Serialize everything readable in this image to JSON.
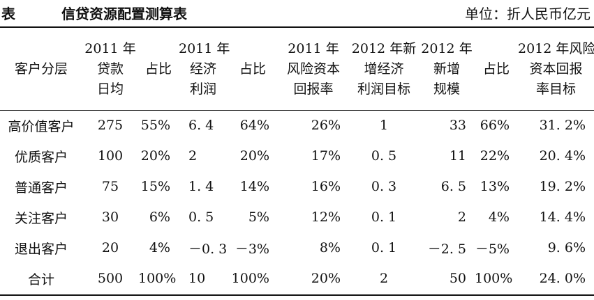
{
  "title": {
    "label": "表",
    "name": "信贷资源配置测算表",
    "unit": "单位：折人民币亿元"
  },
  "table": {
    "headers": [
      [
        "客户分层"
      ],
      [
        "2011 年",
        "贷款",
        "日均"
      ],
      [
        "占比"
      ],
      [
        "2011 年",
        "经济",
        "利润"
      ],
      [
        "占比"
      ],
      [
        "2011 年",
        "风险资本",
        "回报率"
      ],
      [
        "2012 年新",
        "增经济",
        "利润目标"
      ],
      [
        "2012 年",
        "新增",
        "规模"
      ],
      [
        "占比"
      ],
      [
        "2012 年风险",
        "资本回报",
        "率目标"
      ]
    ],
    "rows": [
      [
        "高价值客户",
        "275",
        "55%",
        "6. 4",
        "64%",
        "26%",
        "1",
        "33",
        "66%",
        "31. 2%"
      ],
      [
        "优质客户",
        "100",
        "20%",
        "2",
        "20%",
        "17%",
        "0. 5",
        "11",
        "22%",
        "20. 4%"
      ],
      [
        "普通客户",
        "75",
        "15%",
        "1. 4",
        "14%",
        "16%",
        "0. 3",
        "6. 5",
        "13%",
        "19. 2%"
      ],
      [
        "关注客户",
        "30",
        "6%",
        "0. 5",
        "5%",
        "12%",
        "0. 1",
        "2",
        "4%",
        "14. 4%"
      ],
      [
        "退出客户",
        "20",
        "4%",
        "－0. 3",
        "－3%",
        "8%",
        "0. 1",
        "－2. 5",
        "－5%",
        "9. 6%"
      ],
      [
        "合计",
        "500",
        "100%",
        "10",
        "100%",
        "20%",
        "2",
        "50",
        "100%",
        "24. 0%"
      ]
    ]
  }
}
